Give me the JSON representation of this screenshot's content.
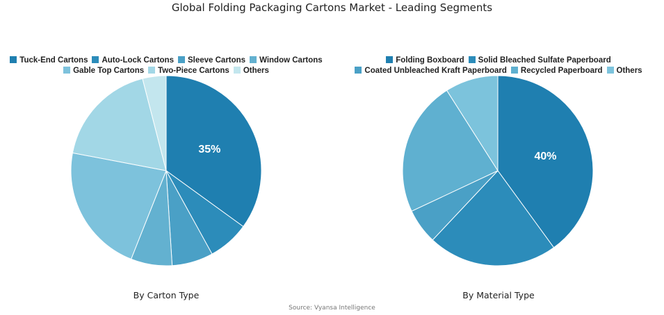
{
  "title": "Global Folding Packaging Cartons Market - Leading Segments",
  "source": "Source: Vyansa Intelligence",
  "chart_data": [
    {
      "type": "pie",
      "subtitle": "By Carton Type",
      "legend_position": "top",
      "categories": [
        "Tuck-End Cartons",
        "Auto-Lock Cartons",
        "Sleeve Cartons",
        "Window Cartons",
        "Gable Top Cartons",
        "Two-Piece Cartons",
        "Others"
      ],
      "values": [
        35,
        7,
        7,
        7,
        22,
        18,
        4
      ],
      "labels_shown": [
        "35%",
        "",
        "",
        "",
        "",
        "",
        ""
      ],
      "colors": [
        "#1f7fb0",
        "#2c8cba",
        "#4aa0c6",
        "#63b1d0",
        "#7dc2dc",
        "#a2d7e6",
        "#c3e6ee"
      ]
    },
    {
      "type": "pie",
      "subtitle": "By Material Type",
      "legend_position": "top",
      "categories": [
        "Folding Boxboard",
        "Solid Bleached Sulfate Paperboard",
        "Coated Unbleached Kraft Paperboard",
        "Recycled Paperboard",
        "Others"
      ],
      "values": [
        40,
        22,
        6,
        23,
        9
      ],
      "labels_shown": [
        "40%",
        "",
        "",
        "",
        ""
      ],
      "colors": [
        "#1f7fb0",
        "#2c8cba",
        "#4aa0c6",
        "#5fb0d0",
        "#7cc3dc"
      ]
    }
  ]
}
